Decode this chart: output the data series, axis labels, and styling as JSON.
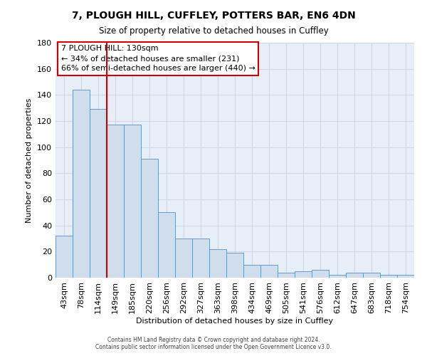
{
  "title": "7, PLOUGH HILL, CUFFLEY, POTTERS BAR, EN6 4DN",
  "subtitle": "Size of property relative to detached houses in Cuffley",
  "xlabel": "Distribution of detached houses by size in Cuffley",
  "ylabel": "Number of detached properties",
  "bin_labels": [
    "43sqm",
    "78sqm",
    "114sqm",
    "149sqm",
    "185sqm",
    "220sqm",
    "256sqm",
    "292sqm",
    "327sqm",
    "363sqm",
    "398sqm",
    "434sqm",
    "469sqm",
    "505sqm",
    "541sqm",
    "576sqm",
    "612sqm",
    "647sqm",
    "683sqm",
    "718sqm",
    "754sqm"
  ],
  "bar_heights": [
    32,
    144,
    129,
    117,
    117,
    91,
    50,
    30,
    30,
    22,
    19,
    10,
    10,
    4,
    5,
    6,
    2,
    4,
    4,
    2,
    2
  ],
  "bar_color": "#cfdded",
  "bar_edge_color": "#6699cc",
  "grid_color": "#d0d8e8",
  "bg_color": "#e8eef8",
  "red_line_x": 2.5,
  "annotation_text": "7 PLOUGH HILL: 130sqm\n← 34% of detached houses are smaller (231)\n66% of semi-detached houses are larger (440) →",
  "annotation_box_color": "#ffffff",
  "annotation_box_edge": "#cc0000",
  "ylim": [
    0,
    180
  ],
  "yticks": [
    0,
    20,
    40,
    60,
    80,
    100,
    120,
    140,
    160,
    180
  ],
  "footnote1": "Contains HM Land Registry data © Crown copyright and database right 2024.",
  "footnote2": "Contains public sector information licensed under the Open Government Licence v3.0."
}
